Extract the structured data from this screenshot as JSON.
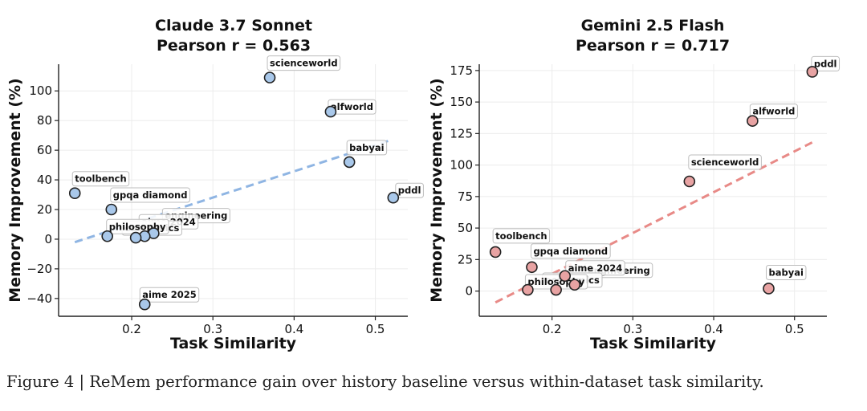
{
  "chart_data": [
    {
      "type": "scatter",
      "title": "Claude 3.7 Sonnet",
      "subtitle": "Pearson r = 0.563",
      "xlabel": "Task Similarity",
      "ylabel": "Memory Improvement (%)",
      "xlim": [
        0.11,
        0.54
      ],
      "ylim": [
        -52,
        118
      ],
      "xticks": [
        0.2,
        0.3,
        0.4,
        0.5
      ],
      "xtick_labels": [
        "0.2",
        "0.3",
        "0.4",
        "0.5"
      ],
      "yticks": [
        -40,
        -20,
        0,
        20,
        40,
        60,
        80,
        100
      ],
      "ytick_labels": [
        "−40",
        "−20",
        "0",
        "20",
        "40",
        "60",
        "80",
        "100"
      ],
      "grid": true,
      "point_color": "#a9c8ea",
      "trend_color": "#8fb5e3",
      "trend": [
        [
          0.13,
          -2
        ],
        [
          0.52,
          67
        ]
      ],
      "points": [
        {
          "label": "scienceworld",
          "x": 0.37,
          "y": 109
        },
        {
          "label": "alfworld",
          "x": 0.445,
          "y": 86
        },
        {
          "label": "babyai",
          "x": 0.468,
          "y": 52
        },
        {
          "label": "toolbench",
          "x": 0.13,
          "y": 31
        },
        {
          "label": "pddl",
          "x": 0.522,
          "y": 28
        },
        {
          "label": "gpqa diamond",
          "x": 0.175,
          "y": 20
        },
        {
          "label": "engineering",
          "x": 0.227,
          "y": 4
        },
        {
          "label": "aime 2024",
          "x": 0.216,
          "y": 2
        },
        {
          "label": "economics",
          "x": 0.205,
          "y": 1
        },
        {
          "label": "philosophy",
          "x": 0.17,
          "y": 2
        },
        {
          "label": "aime 2025",
          "x": 0.216,
          "y": -44
        }
      ]
    },
    {
      "type": "scatter",
      "title": "Gemini 2.5 Flash",
      "subtitle": "Pearson r = 0.717",
      "xlabel": "Task Similarity",
      "ylabel": "Memory Improvement (%)",
      "xlim": [
        0.11,
        0.54
      ],
      "ylim": [
        -20,
        180
      ],
      "xticks": [
        0.2,
        0.3,
        0.4,
        0.5
      ],
      "xtick_labels": [
        "0.2",
        "0.3",
        "0.4",
        "0.5"
      ],
      "yticks": [
        0,
        25,
        50,
        75,
        100,
        125,
        150,
        175
      ],
      "ytick_labels": [
        "0",
        "25",
        "50",
        "75",
        "100",
        "125",
        "150",
        "175"
      ],
      "grid": true,
      "point_color": "#e8a3a3",
      "trend_color": "#e88a87",
      "trend": [
        [
          0.13,
          -9
        ],
        [
          0.522,
          118
        ]
      ],
      "points": [
        {
          "label": "pddl",
          "x": 0.522,
          "y": 174
        },
        {
          "label": "alfworld",
          "x": 0.448,
          "y": 135
        },
        {
          "label": "scienceworld",
          "x": 0.37,
          "y": 87
        },
        {
          "label": "toolbench",
          "x": 0.13,
          "y": 31
        },
        {
          "label": "gpqa diamond",
          "x": 0.175,
          "y": 19
        },
        {
          "label": "engineering",
          "x": 0.228,
          "y": 5
        },
        {
          "label": "aime 2024",
          "x": 0.216,
          "y": 12
        },
        {
          "label": "economics",
          "x": 0.205,
          "y": 1
        },
        {
          "label": "philosophy",
          "x": 0.17,
          "y": 1
        },
        {
          "label": "babyai",
          "x": 0.468,
          "y": 2
        }
      ]
    }
  ],
  "caption": "Figure 4 | ReMem performance gain over history baseline versus within-dataset task similarity."
}
